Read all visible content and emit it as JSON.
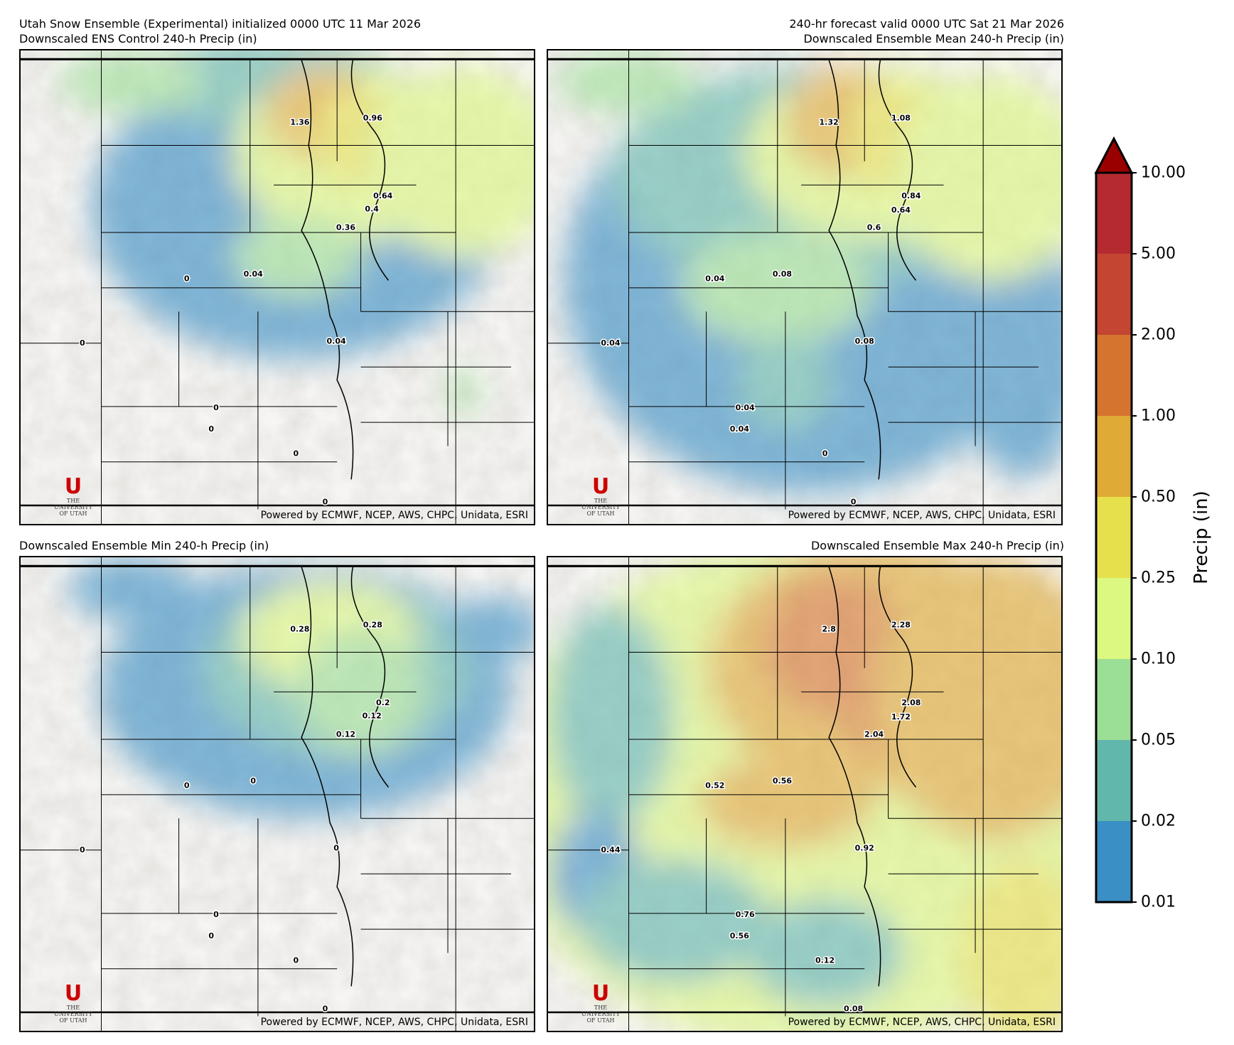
{
  "header": {
    "left_line1": "Utah Snow Ensemble (Experimental) initialized 0000 UTC 11 Mar 2026",
    "right_line1": "240-hr forecast valid 0000 UTC Sat 21 Mar 2026"
  },
  "credit": "Powered by ECMWF, NCEP, AWS, CHPC, Unidata, ESRI",
  "logo": {
    "the": "THE",
    "line1": "UNIVERSITY",
    "line2": "OF UTAH",
    "mark": "U"
  },
  "panels": [
    {
      "title": "Downscaled ENS Control 240-h Precip (in)",
      "labels": [
        "1.36",
        "0.96",
        "0.64",
        "0.4",
        "0.36",
        "0",
        "0.04",
        "0.04",
        "0",
        "0",
        "0",
        "0",
        "0"
      ]
    },
    {
      "title": "Downscaled Ensemble Mean 240-h Precip (in)",
      "labels": [
        "1.32",
        "1.08",
        "0.84",
        "0.64",
        "0.6",
        "0.04",
        "0.08",
        "0.04",
        "0.08",
        "0.04",
        "0.04",
        "0",
        "0"
      ]
    },
    {
      "title": "Downscaled Ensemble Min 240-h Precip (in)",
      "labels": [
        "0.28",
        "0.28",
        "0.2",
        "0.12",
        "0.12",
        "0",
        "0",
        "0",
        "0",
        "0",
        "0",
        "0",
        "0"
      ]
    },
    {
      "title": "Downscaled Ensemble Max 240-h Precip (in)",
      "labels": [
        "2.8",
        "2.28",
        "2.08",
        "1.72",
        "2.04",
        "0.52",
        "0.56",
        "0.44",
        "0.92",
        "0.76",
        "0.56",
        "0.12",
        "0.08"
      ]
    }
  ],
  "colorbar": {
    "label": "Precip (in)",
    "ticks": [
      "0.01",
      "0.02",
      "0.05",
      "0.10",
      "0.25",
      "0.50",
      "1.00",
      "2.00",
      "5.00",
      "10.00"
    ],
    "colors": [
      "#3a8fc4",
      "#62b7ac",
      "#9bde95",
      "#dbf880",
      "#e6e04c",
      "#dfaa35",
      "#d5742f",
      "#c44532",
      "#b52a30"
    ],
    "extend_color": "#9b0000"
  }
}
